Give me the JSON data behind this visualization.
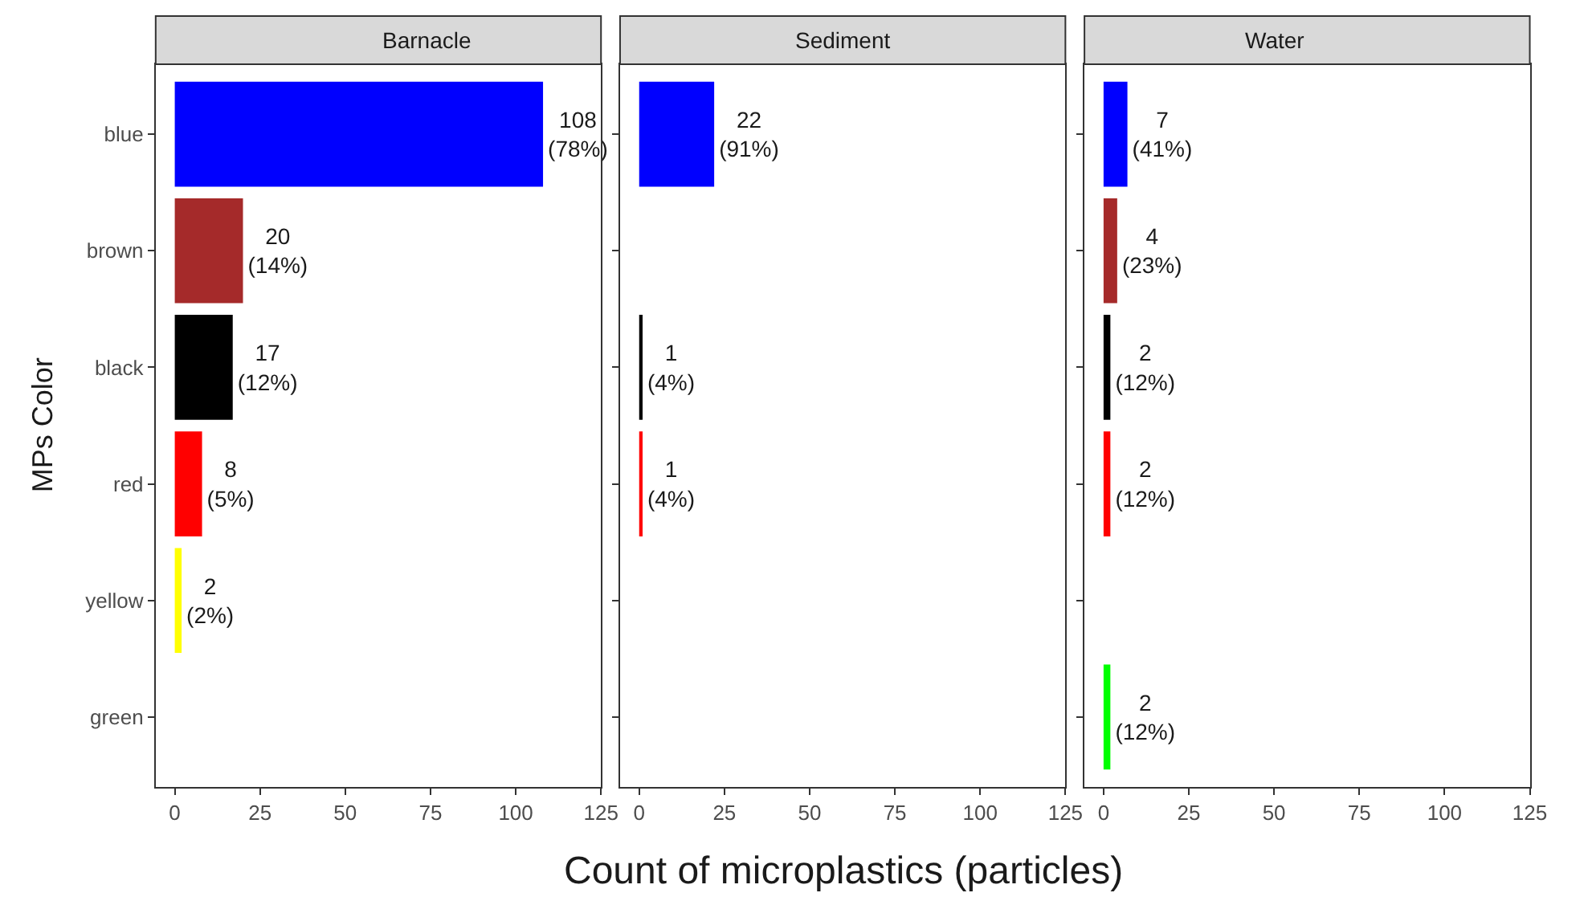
{
  "chart_data": [
    {
      "type": "bar",
      "orientation": "horizontal",
      "title": "Barnacle",
      "ylabel": "MPs Color",
      "categories": [
        "blue",
        "brown",
        "black",
        "red",
        "yellow",
        "green"
      ],
      "values": [
        108,
        20,
        17,
        8,
        2,
        null
      ],
      "colors": [
        "#0000ff",
        "#a52a2a",
        "#000000",
        "#ff0000",
        "#ffff00",
        "#00ff00"
      ],
      "value_labels": [
        "108\n(78%)",
        "20\n(14%)",
        "17\n(12%)",
        "8\n(5%)",
        "2\n(2%)",
        null
      ],
      "xlim": [
        -5.6,
        125
      ],
      "xticks": [
        0,
        25,
        50,
        75,
        100,
        125
      ],
      "grid": false
    },
    {
      "type": "bar",
      "orientation": "horizontal",
      "title": "Sediment",
      "xlabel": "Count of microplastics (particles)",
      "categories": [
        "blue",
        "brown",
        "black",
        "red",
        "yellow",
        "green"
      ],
      "values": [
        22,
        null,
        1,
        1,
        null,
        null
      ],
      "colors": [
        "#0000ff",
        "#a52a2a",
        "#000000",
        "#ff0000",
        "#ffff00",
        "#00ff00"
      ],
      "value_labels": [
        "22\n(91%)",
        null,
        "1\n(4%)",
        "1\n(4%)",
        null,
        null
      ],
      "xlim": [
        -5.6,
        125
      ],
      "xticks": [
        0,
        25,
        50,
        75,
        100,
        125
      ],
      "grid": false,
      "tick_labels": "x"
    },
    {
      "type": "bar",
      "orientation": "horizontal",
      "title": "Water",
      "categories": [
        "blue",
        "brown",
        "black",
        "red",
        "yellow",
        "green"
      ],
      "values": [
        7,
        4,
        2,
        2,
        null,
        2
      ],
      "colors": [
        "#0000ff",
        "#a52a2a",
        "#000000",
        "#ff0000",
        "#ffff00",
        "#00ff00"
      ],
      "value_labels": [
        "7\n(41%)",
        "4\n(23%)",
        "2\n(12%)",
        "2\n(12%)",
        null,
        "2\n(12%)"
      ],
      "xlim": [
        -5.6,
        125
      ],
      "xticks": [
        0,
        25,
        50,
        75,
        100,
        125
      ],
      "grid": false,
      "tick_labels": "x"
    }
  ]
}
